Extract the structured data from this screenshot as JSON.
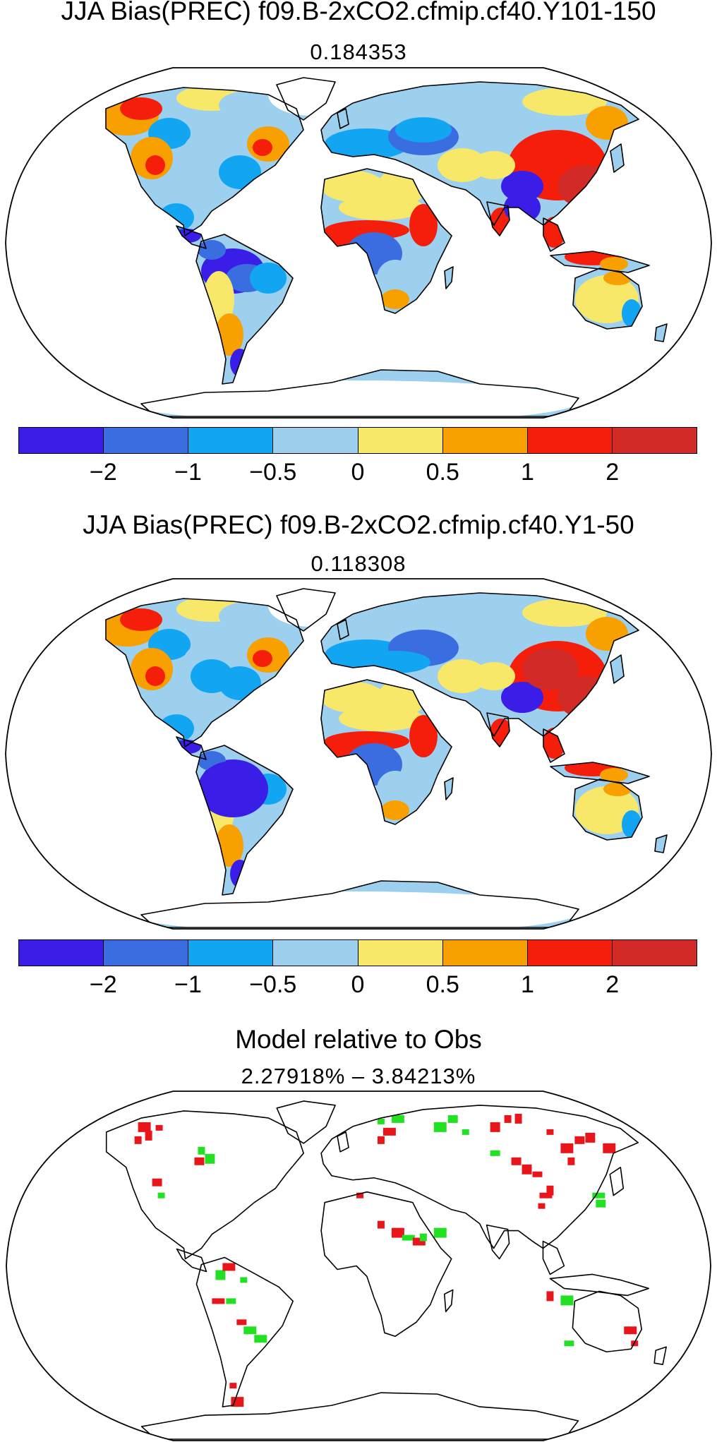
{
  "panels": [
    {
      "title": "JJA Bias(PREC) f09.B-2xCO2.cfmip.cf40.Y101-150",
      "subtitle": "0.184353",
      "variant": "y101"
    },
    {
      "title": "JJA Bias(PREC) f09.B-2xCO2.cfmip.cf40.Y1-50",
      "subtitle": "0.118308",
      "variant": "y1"
    },
    {
      "title": "Model relative to Obs",
      "subtitle": "2.27918% – 3.84213%",
      "variant": "diff"
    }
  ],
  "colorbar": {
    "colors": [
      "#3a1ee8",
      "#3a6ee0",
      "#12a6f2",
      "#9dd0ef",
      "#f8e86a",
      "#f8a000",
      "#f51e0a",
      "#d22a26"
    ],
    "tick_labels": [
      "−2",
      "−1",
      "−0.5",
      "0",
      "0.5",
      "1",
      "2"
    ]
  },
  "diff_colors": {
    "worse": "#e8161a",
    "better": "#22e022"
  }
}
